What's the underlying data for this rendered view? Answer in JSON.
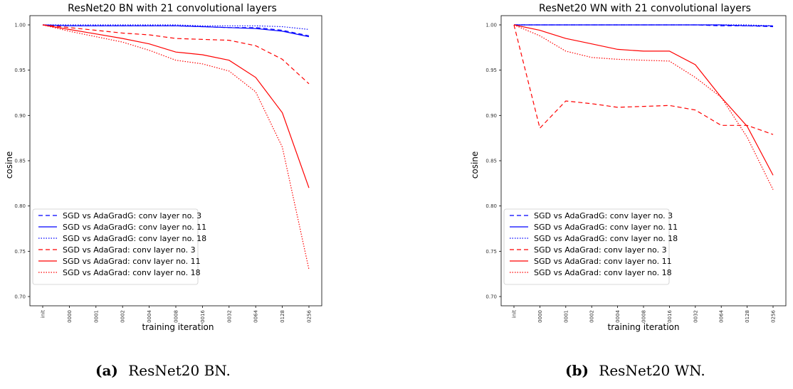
{
  "captions": [
    {
      "label": "(a)",
      "text": "ResNet20 BN."
    },
    {
      "label": "(b)",
      "text": "ResNet20 WN."
    }
  ],
  "chart_data": [
    {
      "type": "line",
      "title": "ResNet20 BN with 21 convolutional layers",
      "xlabel": "training iteration",
      "ylabel": "cosine",
      "categories": [
        "init",
        "0000",
        "0001",
        "0002",
        "0004",
        "0008",
        "0016",
        "0032",
        "0064",
        "0128",
        "0256"
      ],
      "ylim": [
        0.7,
        1.0
      ],
      "yticks": [
        "0.70",
        "0.75",
        "0.80",
        "0.85",
        "0.90",
        "0.95",
        "1.00"
      ],
      "grid": false,
      "legend_position": "lower-left",
      "series": [
        {
          "name": "SGD vs AdaGradG: conv layer no. 3",
          "color": "#0000ff",
          "style": "dashed",
          "values": [
            1.0,
            0.999,
            0.999,
            0.999,
            0.999,
            0.999,
            0.998,
            0.997,
            0.997,
            0.994,
            0.988
          ]
        },
        {
          "name": "SGD vs AdaGradG: conv layer no. 11",
          "color": "#0000ff",
          "style": "solid",
          "values": [
            1.0,
            0.999,
            0.999,
            0.999,
            0.999,
            0.999,
            0.998,
            0.997,
            0.996,
            0.993,
            0.987
          ]
        },
        {
          "name": "SGD vs AdaGradG: conv layer no. 18",
          "color": "#0000ff",
          "style": "dotted",
          "values": [
            1.0,
            1.0,
            1.0,
            1.0,
            1.0,
            1.0,
            0.999,
            0.999,
            0.999,
            0.998,
            0.995
          ]
        },
        {
          "name": "SGD vs AdaGrad: conv layer no. 3",
          "color": "#ff0000",
          "style": "dashed",
          "values": [
            1.0,
            0.997,
            0.994,
            0.991,
            0.989,
            0.985,
            0.984,
            0.983,
            0.977,
            0.962,
            0.935
          ]
        },
        {
          "name": "SGD vs AdaGrad: conv layer no. 11",
          "color": "#ff0000",
          "style": "solid",
          "values": [
            1.0,
            0.995,
            0.99,
            0.985,
            0.979,
            0.97,
            0.967,
            0.961,
            0.942,
            0.903,
            0.82
          ]
        },
        {
          "name": "SGD vs AdaGrad: conv layer no. 18",
          "color": "#ff0000",
          "style": "dotted",
          "values": [
            1.0,
            0.993,
            0.987,
            0.981,
            0.972,
            0.961,
            0.957,
            0.949,
            0.926,
            0.865,
            0.73
          ]
        }
      ]
    },
    {
      "type": "line",
      "title": "ResNet20 WN with 21 convolutional layers",
      "xlabel": "training iteration",
      "ylabel": "cosine",
      "categories": [
        "init",
        "0000",
        "0001",
        "0002",
        "0004",
        "0008",
        "0016",
        "0032",
        "0064",
        "0128",
        "0256"
      ],
      "ylim": [
        0.7,
        1.0
      ],
      "yticks": [
        "0.70",
        "0.75",
        "0.80",
        "0.85",
        "0.90",
        "0.95",
        "1.00"
      ],
      "grid": false,
      "legend_position": "lower-left",
      "series": [
        {
          "name": "SGD vs AdaGradG: conv layer no. 3",
          "color": "#0000ff",
          "style": "dashed",
          "values": [
            1.0,
            1.0,
            1.0,
            1.0,
            1.0,
            1.0,
            1.0,
            1.0,
            0.999,
            0.999,
            0.998
          ]
        },
        {
          "name": "SGD vs AdaGradG: conv layer no. 11",
          "color": "#0000ff",
          "style": "solid",
          "values": [
            1.0,
            1.0,
            1.0,
            1.0,
            1.0,
            1.0,
            1.0,
            1.0,
            1.0,
            0.999,
            0.999
          ]
        },
        {
          "name": "SGD vs AdaGradG: conv layer no. 18",
          "color": "#0000ff",
          "style": "dotted",
          "values": [
            1.0,
            1.0,
            1.0,
            1.0,
            1.0,
            1.0,
            1.0,
            1.0,
            1.0,
            1.0,
            0.999
          ]
        },
        {
          "name": "SGD vs AdaGrad: conv layer no. 3",
          "color": "#ff0000",
          "style": "dashed",
          "values": [
            1.0,
            0.886,
            0.916,
            0.913,
            0.909,
            0.91,
            0.911,
            0.906,
            0.889,
            0.889,
            0.879
          ]
        },
        {
          "name": "SGD vs AdaGrad: conv layer no. 11",
          "color": "#ff0000",
          "style": "solid",
          "values": [
            1.0,
            0.994,
            0.985,
            0.979,
            0.973,
            0.971,
            0.971,
            0.956,
            0.92,
            0.888,
            0.834
          ]
        },
        {
          "name": "SGD vs AdaGrad: conv layer no. 18",
          "color": "#ff0000",
          "style": "dotted",
          "values": [
            1.0,
            0.988,
            0.971,
            0.964,
            0.962,
            0.961,
            0.96,
            0.942,
            0.92,
            0.876,
            0.818
          ]
        }
      ]
    }
  ]
}
